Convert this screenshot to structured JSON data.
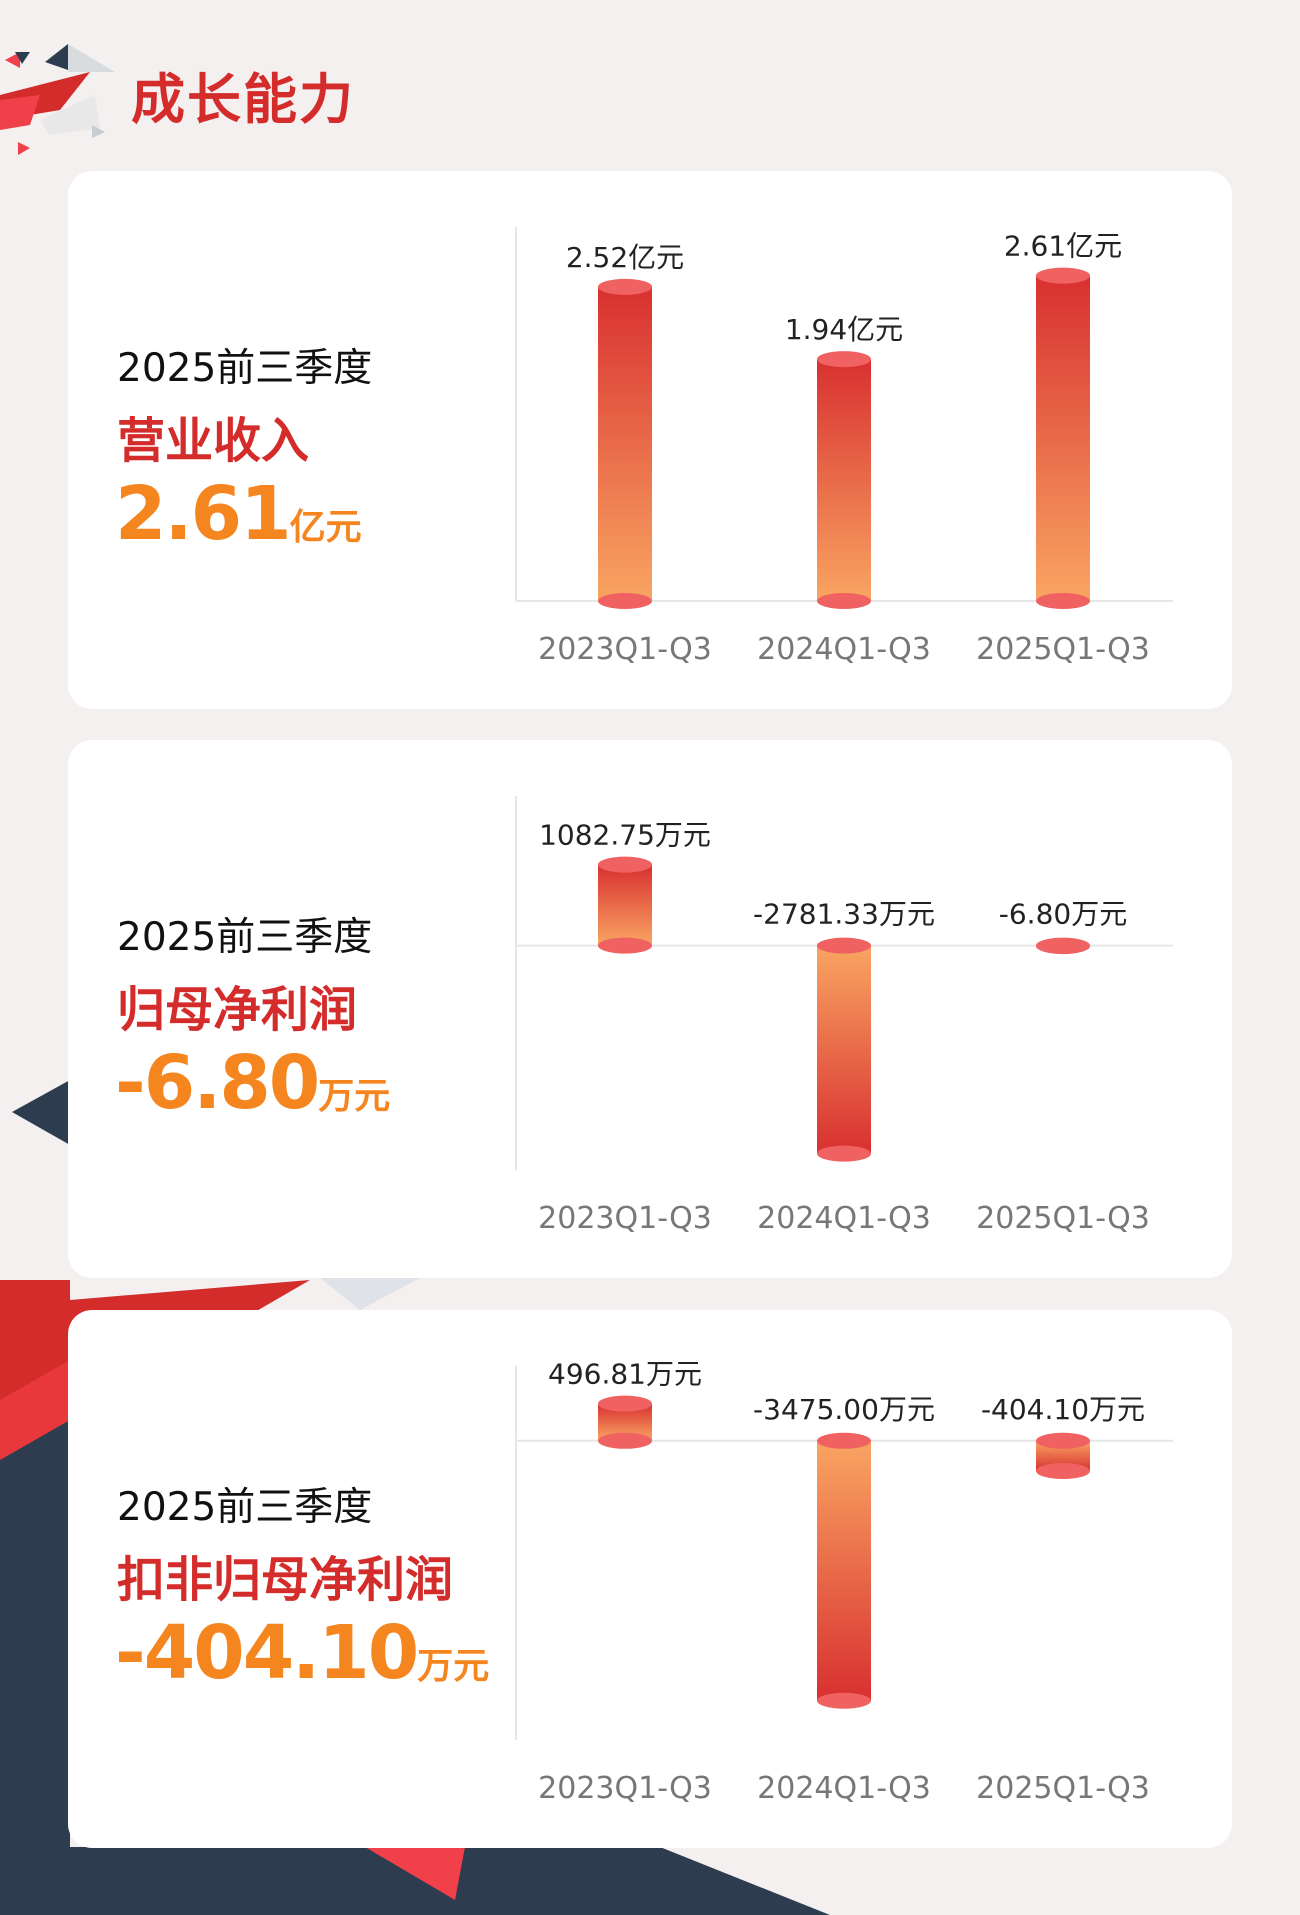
{
  "header": {
    "title": "成长能力"
  },
  "colors": {
    "accent_red": "#d42b2b",
    "accent_orange": "#f5861f",
    "bar_top": "#d83030",
    "bar_bottom": "#f9a562",
    "cap": "#f06262",
    "navy": "#2d3d4f"
  },
  "cards": [
    {
      "period": "2025前三季度",
      "metric": "营业收入",
      "value": "2.61",
      "unit": "亿元"
    },
    {
      "period": "2025前三季度",
      "metric": "归母净利润",
      "value": "-6.80",
      "unit": "万元"
    },
    {
      "period": "2025前三季度",
      "metric": "扣非归母净利润",
      "value": "-404.10",
      "unit": "万元"
    }
  ],
  "chart_data": [
    {
      "type": "bar",
      "categories": [
        "2023Q1-Q3",
        "2024Q1-Q3",
        "2025Q1-Q3"
      ],
      "values": [
        2.52,
        1.94,
        2.61
      ],
      "data_labels": [
        "2.52亿元",
        "1.94亿元",
        "2.61亿元"
      ],
      "unit": "亿元",
      "ylim": [
        0,
        3
      ],
      "grid": false
    },
    {
      "type": "bar",
      "categories": [
        "2023Q1-Q3",
        "2024Q1-Q3",
        "2025Q1-Q3"
      ],
      "values": [
        1082.75,
        -2781.33,
        -6.8
      ],
      "data_labels": [
        "1082.75万元",
        "-2781.33万元",
        "-6.80万元"
      ],
      "unit": "万元",
      "ylim": [
        -3000,
        2000
      ],
      "grid": false
    },
    {
      "type": "bar",
      "categories": [
        "2023Q1-Q3",
        "2024Q1-Q3",
        "2025Q1-Q3"
      ],
      "values": [
        496.81,
        -3475.0,
        -404.1
      ],
      "data_labels": [
        "496.81万元",
        "-3475.00万元",
        "-404.10万元"
      ],
      "unit": "万元",
      "ylim": [
        -4000,
        1000
      ],
      "grid": false
    }
  ]
}
